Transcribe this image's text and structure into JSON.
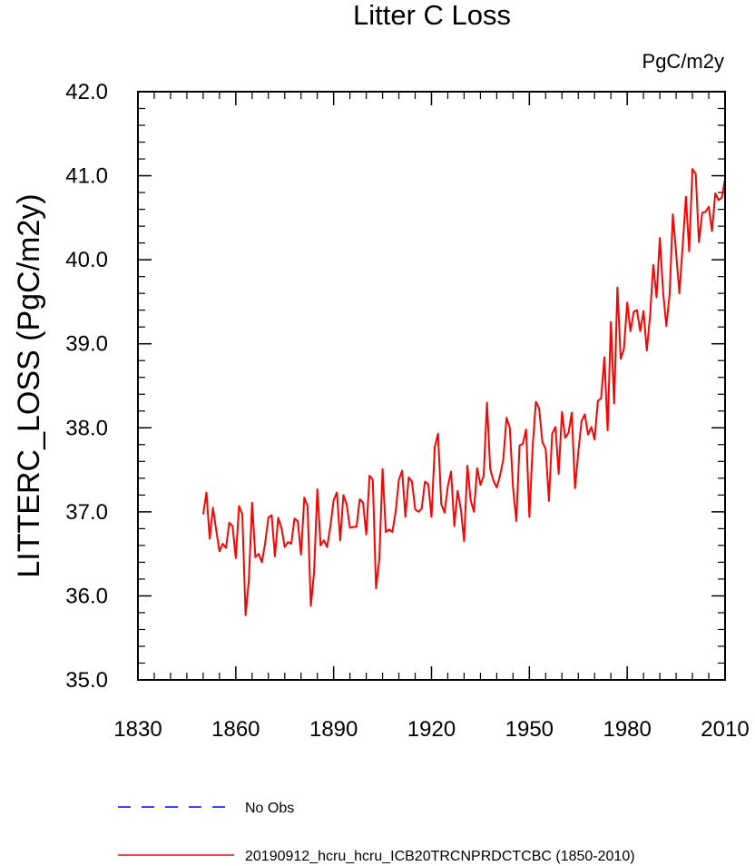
{
  "chart_data": {
    "type": "line",
    "title": "Litter C Loss",
    "units_label": "PgC/m2y",
    "ylabel": "LITTERC_LOSS  (PgC/m2y)",
    "xlabel": "",
    "xlim": [
      1830,
      2010
    ],
    "ylim": [
      35.0,
      42.0
    ],
    "x_ticks": [
      1830,
      1860,
      1890,
      1920,
      1950,
      1980,
      2010
    ],
    "x_tick_labels": [
      "1830",
      "1860",
      "1890",
      "1920",
      "1950",
      "1980",
      "2010"
    ],
    "y_ticks": [
      35.0,
      36.0,
      37.0,
      38.0,
      39.0,
      40.0,
      41.0,
      42.0
    ],
    "y_tick_labels": [
      "35.0",
      "36.0",
      "37.0",
      "38.0",
      "39.0",
      "40.0",
      "41.0",
      "42.0"
    ],
    "grid": false,
    "legend": {
      "position": "bottom",
      "entries": [
        {
          "label": "No Obs",
          "color": "#0000ff",
          "style": "dashed"
        },
        {
          "label": "20190912_hcru_hcru_ICB20TRCNPRDCTCBC (1850-2010)",
          "color": "#ff0000",
          "style": "solid"
        }
      ]
    },
    "series": [
      {
        "name": "20190912_hcru_hcru_ICB20TRCNPRDCTCBC (1850-2010)",
        "color": "#ff0000",
        "x_start": 1850,
        "x_step": 1,
        "values": [
          36.97,
          37.23,
          36.68,
          37.05,
          36.78,
          36.53,
          36.62,
          36.57,
          36.87,
          36.83,
          36.45,
          37.07,
          36.97,
          35.77,
          36.18,
          37.11,
          36.46,
          36.5,
          36.4,
          36.63,
          36.93,
          36.96,
          36.47,
          36.93,
          36.81,
          36.58,
          36.64,
          36.62,
          36.92,
          36.89,
          36.49,
          37.17,
          37.07,
          35.88,
          36.28,
          37.27,
          36.6,
          36.66,
          36.58,
          36.83,
          37.14,
          37.23,
          36.66,
          37.2,
          37.09,
          36.81,
          36.82,
          36.82,
          37.15,
          37.11,
          36.73,
          37.43,
          37.38,
          36.09,
          36.43,
          37.51,
          36.76,
          36.79,
          36.76,
          37.0,
          37.38,
          37.49,
          36.94,
          37.41,
          37.36,
          37.03,
          37.0,
          37.04,
          37.36,
          37.33,
          36.94,
          37.77,
          37.93,
          37.09,
          36.99,
          37.3,
          37.48,
          36.83,
          37.25,
          37.03,
          36.65,
          37.55,
          37.14,
          37.0,
          37.52,
          37.32,
          37.43,
          38.3,
          37.51,
          37.37,
          37.29,
          37.43,
          37.62,
          38.12,
          38.0,
          37.29,
          36.89,
          37.79,
          37.81,
          37.98,
          36.94,
          37.77,
          38.31,
          38.23,
          37.83,
          37.75,
          37.13,
          37.93,
          38.01,
          37.45,
          38.19,
          37.88,
          37.94,
          38.18,
          37.28,
          37.71,
          38.08,
          38.16,
          37.92,
          38.01,
          37.86,
          38.32,
          38.35,
          38.84,
          37.97,
          39.26,
          38.29,
          39.67,
          38.82,
          38.94,
          39.49,
          39.15,
          39.38,
          39.4,
          39.15,
          39.39,
          38.92,
          39.33,
          39.94,
          39.55,
          40.26,
          39.62,
          39.21,
          39.59,
          40.54,
          40.08,
          39.6,
          40.16,
          40.75,
          40.1,
          41.08,
          41.02,
          40.21,
          40.56,
          40.57,
          40.63,
          40.34,
          40.79,
          40.71,
          40.74,
          40.96
        ]
      }
    ]
  }
}
